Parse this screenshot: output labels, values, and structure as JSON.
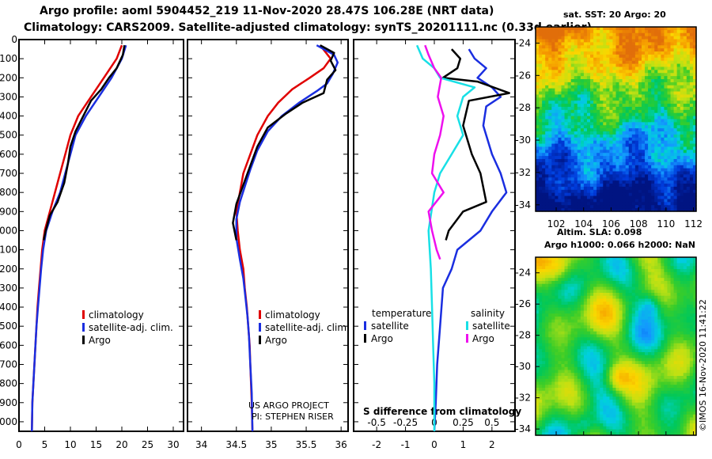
{
  "header": {
    "line1": "Argo profile: aoml 5904452_219 11-Nov-2020 28.47S 106.28E (NRT data)",
    "line2": "Climatology: CARS2009. Satellite-adjusted climatology: synTS_20201111.nc (0.33d earlier)"
  },
  "colors": {
    "clim": "#e00000",
    "sat": "#1a2ee0",
    "argo": "#000000",
    "sal_sat": "#18e0e6",
    "sal_argo": "#ee10ee"
  },
  "chart_data": [
    {
      "type": "line",
      "name": "temperature-profile",
      "xlim": [
        0,
        32
      ],
      "ylim": [
        0,
        2050
      ],
      "xticks": [
        "0",
        "5",
        "10",
        "15",
        "20",
        "25",
        "30"
      ],
      "xtick_values": [
        0,
        5,
        10,
        15,
        20,
        25,
        30
      ],
      "yticks": [
        "0",
        "100",
        "200",
        "300",
        "400",
        "500",
        "600",
        "700",
        "800",
        "900",
        "1000",
        "1100",
        "1200",
        "1300",
        "1400",
        "1500",
        "1600",
        "1700",
        "1800",
        "1900",
        "2000"
      ],
      "legend": {
        "position": "bottom-right",
        "items": [
          "climatology",
          "satellite-adj. clim.",
          "Argo"
        ]
      },
      "series": [
        {
          "name": "climatology",
          "color_key": "clim",
          "points": [
            [
              20.0,
              30
            ],
            [
              19.0,
              100
            ],
            [
              16.5,
              200
            ],
            [
              14.0,
              300
            ],
            [
              11.5,
              400
            ],
            [
              10.0,
              500
            ],
            [
              9.0,
              600
            ],
            [
              8.0,
              700
            ],
            [
              7.0,
              800
            ],
            [
              6.0,
              900
            ],
            [
              5.0,
              1000
            ],
            [
              4.5,
              1100
            ],
            [
              4.2,
              1200
            ],
            [
              3.9,
              1300
            ],
            [
              3.6,
              1400
            ],
            [
              3.4,
              1500
            ],
            [
              3.2,
              1600
            ],
            [
              3.0,
              1700
            ],
            [
              2.8,
              1800
            ],
            [
              2.6,
              1900
            ],
            [
              2.5,
              2050
            ]
          ]
        },
        {
          "name": "satellite-adj. clim.",
          "color_key": "sat",
          "points": [
            [
              20.8,
              30
            ],
            [
              20.0,
              100
            ],
            [
              18.0,
              200
            ],
            [
              15.5,
              300
            ],
            [
              13.0,
              400
            ],
            [
              11.0,
              500
            ],
            [
              10.0,
              600
            ],
            [
              9.0,
              700
            ],
            [
              8.0,
              800
            ],
            [
              6.5,
              900
            ],
            [
              5.3,
              1000
            ],
            [
              4.7,
              1100
            ],
            [
              4.3,
              1200
            ],
            [
              4.0,
              1300
            ],
            [
              3.7,
              1400
            ],
            [
              3.4,
              1500
            ],
            [
              3.2,
              1600
            ],
            [
              3.0,
              1700
            ],
            [
              2.8,
              1800
            ],
            [
              2.6,
              1900
            ],
            [
              2.5,
              2050
            ]
          ]
        },
        {
          "name": "Argo",
          "color_key": "argo",
          "points": [
            [
              20.5,
              30
            ],
            [
              20.2,
              80
            ],
            [
              19.0,
              150
            ],
            [
              17.5,
              200
            ],
            [
              16.0,
              260
            ],
            [
              14.0,
              320
            ],
            [
              12.5,
              400
            ],
            [
              11.0,
              480
            ],
            [
              10.0,
              560
            ],
            [
              9.5,
              650
            ],
            [
              8.8,
              750
            ],
            [
              7.5,
              850
            ],
            [
              6.0,
              920
            ],
            [
              5.2,
              1000
            ],
            [
              4.8,
              1050
            ]
          ]
        }
      ]
    },
    {
      "type": "line",
      "name": "salinity-profile",
      "xlim": [
        33.8,
        36.1
      ],
      "ylim": [
        0,
        2050
      ],
      "xticks": [
        "34",
        "34.5",
        "35",
        "35.5",
        "36"
      ],
      "xtick_values": [
        34,
        34.5,
        35,
        35.5,
        36
      ],
      "legend": {
        "position": "bottom-right",
        "items": [
          "climatology",
          "satellite-adj. clim.",
          "Argo"
        ]
      },
      "annotations": [
        "US ARGO PROJECT",
        "PI: STEPHEN RISER"
      ],
      "series": [
        {
          "name": "climatology",
          "color_key": "clim",
          "points": [
            [
              35.7,
              30
            ],
            [
              35.85,
              100
            ],
            [
              35.75,
              150
            ],
            [
              35.55,
              200
            ],
            [
              35.3,
              260
            ],
            [
              35.1,
              330
            ],
            [
              34.95,
              400
            ],
            [
              34.8,
              500
            ],
            [
              34.7,
              600
            ],
            [
              34.6,
              700
            ],
            [
              34.55,
              800
            ],
            [
              34.5,
              900
            ],
            [
              34.52,
              1000
            ],
            [
              34.55,
              1100
            ],
            [
              34.6,
              1200
            ],
            [
              34.62,
              1300
            ],
            [
              34.65,
              1400
            ],
            [
              34.67,
              1500
            ],
            [
              34.69,
              1600
            ],
            [
              34.7,
              1700
            ],
            [
              34.71,
              1800
            ],
            [
              34.72,
              1900
            ],
            [
              34.73,
              2050
            ]
          ]
        },
        {
          "name": "satellite-adj. clim.",
          "color_key": "sat",
          "points": [
            [
              35.65,
              30
            ],
            [
              35.9,
              80
            ],
            [
              35.95,
              120
            ],
            [
              35.88,
              180
            ],
            [
              35.8,
              230
            ],
            [
              35.65,
              270
            ],
            [
              35.4,
              330
            ],
            [
              35.15,
              400
            ],
            [
              34.95,
              480
            ],
            [
              34.8,
              580
            ],
            [
              34.7,
              680
            ],
            [
              34.62,
              770
            ],
            [
              34.55,
              850
            ],
            [
              34.5,
              940
            ],
            [
              34.5,
              1040
            ],
            [
              34.55,
              1150
            ],
            [
              34.6,
              1250
            ],
            [
              34.63,
              1350
            ],
            [
              34.66,
              1450
            ],
            [
              34.68,
              1550
            ],
            [
              34.7,
              1700
            ],
            [
              34.72,
              1850
            ],
            [
              34.73,
              2050
            ]
          ]
        },
        {
          "name": "Argo",
          "color_key": "argo",
          "points": [
            [
              35.7,
              30
            ],
            [
              35.9,
              70
            ],
            [
              35.85,
              110
            ],
            [
              35.92,
              160
            ],
            [
              35.8,
              210
            ],
            [
              35.75,
              280
            ],
            [
              35.45,
              330
            ],
            [
              35.2,
              390
            ],
            [
              34.95,
              460
            ],
            [
              34.8,
              560
            ],
            [
              34.7,
              660
            ],
            [
              34.6,
              760
            ],
            [
              34.5,
              860
            ],
            [
              34.45,
              960
            ],
            [
              34.5,
              1050
            ]
          ]
        }
      ]
    },
    {
      "type": "line",
      "name": "difference-from-climatology",
      "xlim": [
        -2.8,
        2.8
      ],
      "ylim": [
        0,
        2050
      ],
      "xticks": [
        "-2",
        "-1",
        "0",
        "1",
        "2"
      ],
      "xtick_values": [
        -2,
        -1,
        0,
        1,
        2
      ],
      "sticks": [
        "-0.5",
        "-0.25",
        "0",
        "0.25",
        "0.5"
      ],
      "stick_values": [
        -0.5,
        -0.25,
        0,
        0.25,
        0.5
      ],
      "xlabel": "S difference from climatology",
      "legend": {
        "position": "bottom",
        "left_title": "temperature",
        "right_title": "salinity",
        "left_items": [
          "satellite",
          "Argo"
        ],
        "right_items": [
          "satellite",
          "Argo"
        ]
      },
      "series": [
        {
          "name": "temperature satellite",
          "color_key": "sat",
          "scale": "T",
          "points": [
            [
              1.2,
              50
            ],
            [
              1.4,
              100
            ],
            [
              1.8,
              150
            ],
            [
              1.5,
              200
            ],
            [
              2.0,
              250
            ],
            [
              2.3,
              300
            ],
            [
              1.8,
              350
            ],
            [
              1.7,
              450
            ],
            [
              2.0,
              600
            ],
            [
              2.3,
              700
            ],
            [
              2.5,
              800
            ],
            [
              2.0,
              900
            ],
            [
              1.6,
              1000
            ],
            [
              0.8,
              1100
            ],
            [
              0.6,
              1200
            ],
            [
              0.3,
              1300
            ],
            [
              0.2,
              1500
            ],
            [
              0.1,
              1700
            ],
            [
              0.05,
              1900
            ],
            [
              0.0,
              2050
            ]
          ]
        },
        {
          "name": "temperature Argo",
          "color_key": "argo",
          "scale": "T",
          "points": [
            [
              0.6,
              50
            ],
            [
              0.9,
              100
            ],
            [
              0.8,
              150
            ],
            [
              0.3,
              200
            ],
            [
              1.5,
              220
            ],
            [
              2.6,
              280
            ],
            [
              1.2,
              320
            ],
            [
              1.0,
              450
            ],
            [
              1.3,
              600
            ],
            [
              1.6,
              700
            ],
            [
              1.8,
              850
            ],
            [
              1.0,
              900
            ],
            [
              0.5,
              1000
            ],
            [
              0.4,
              1050
            ]
          ]
        },
        {
          "name": "salinity satellite",
          "color_key": "sal_sat",
          "scale": "S",
          "points": [
            [
              -0.15,
              30
            ],
            [
              -0.1,
              100
            ],
            [
              0.0,
              150
            ],
            [
              0.05,
              200
            ],
            [
              0.35,
              250
            ],
            [
              0.25,
              300
            ],
            [
              0.2,
              400
            ],
            [
              0.25,
              500
            ],
            [
              0.15,
              600
            ],
            [
              0.05,
              700
            ],
            [
              0.0,
              800
            ],
            [
              -0.05,
              1000
            ],
            [
              -0.03,
              1200
            ],
            [
              -0.02,
              1400
            ],
            [
              -0.01,
              1600
            ],
            [
              0.0,
              1800
            ],
            [
              0.0,
              2050
            ]
          ]
        },
        {
          "name": "salinity Argo",
          "color_key": "sal_argo",
          "scale": "S",
          "points": [
            [
              -0.08,
              30
            ],
            [
              -0.05,
              80
            ],
            [
              0.0,
              150
            ],
            [
              0.06,
              200
            ],
            [
              0.03,
              300
            ],
            [
              0.08,
              400
            ],
            [
              0.05,
              500
            ],
            [
              0.0,
              600
            ],
            [
              -0.02,
              700
            ],
            [
              0.08,
              800
            ],
            [
              -0.05,
              900
            ],
            [
              -0.02,
              1000
            ],
            [
              0.02,
              1100
            ],
            [
              0.05,
              1150
            ]
          ]
        }
      ]
    }
  ],
  "panel_diff": {
    "legend_temp_title": "temperature",
    "legend_sal_title": "salinity",
    "legend_temp_sat": "satellite",
    "legend_temp_argo": "Argo",
    "legend_sal_sat": "satellite",
    "legend_sal_argo": "Argo",
    "xlabel": "S difference from climatology"
  },
  "panel_temp_legend": [
    "climatology",
    "satellite-adj. clim.",
    "Argo"
  ],
  "panel_sal_legend": [
    "climatology",
    "satellite-adj. clim.",
    "Argo"
  ],
  "credits": {
    "line1": "US ARGO PROJECT",
    "line2": "PI: STEPHEN RISER"
  },
  "maps": {
    "sst_title": "sat. SST: 20 Argo: 20",
    "sla_title1": "Altim. SLA: 0.098",
    "sla_title2": "Argo h1000: 0.066 h2000: NaN",
    "lat_labels": [
      "-24",
      "-26",
      "-28",
      "-30",
      "-32",
      "-34"
    ],
    "lat_values": [
      -24,
      -26,
      -28,
      -30,
      -32,
      -34
    ],
    "lon_labels": [
      "102",
      "104",
      "106",
      "108",
      "110",
      "112"
    ],
    "lon_values": [
      102,
      104,
      106,
      108,
      110,
      112
    ],
    "lon_range": [
      100.5,
      112.2
    ],
    "lat_range": [
      -23.0,
      -34.4
    ]
  },
  "watermark": "©IMOS 16-Nov-2020 11:41:22"
}
